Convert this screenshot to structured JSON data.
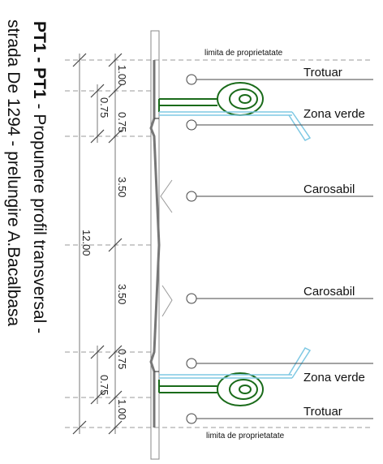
{
  "title": {
    "code": "PT1 - PT1",
    "line1_rest": " - Propunere profil transversal -",
    "line2": "strada De 1294 - prelungire A.Bacalbasa"
  },
  "labels": {
    "limit_top": "limita de proprietatate",
    "limit_bottom": "limita de proprietatate",
    "sidewalk_top": "Trotuar",
    "green_top": "Zona verde",
    "road_top": "Carosabil",
    "road_bottom": "Carosabil",
    "green_bottom": "Zona verde",
    "sidewalk_bottom": "Trotuar"
  },
  "dimensions": {
    "inner": [
      "1.00",
      "0.75",
      "3.50",
      "3.50",
      "0.75",
      "1.00"
    ],
    "middle_top": "0.75",
    "middle_bottom": "0.75",
    "total": "12.00"
  },
  "colors": {
    "green": "#1a6b1a",
    "blue": "#7ec8e3",
    "road": "#777777",
    "guide": "#999999"
  }
}
